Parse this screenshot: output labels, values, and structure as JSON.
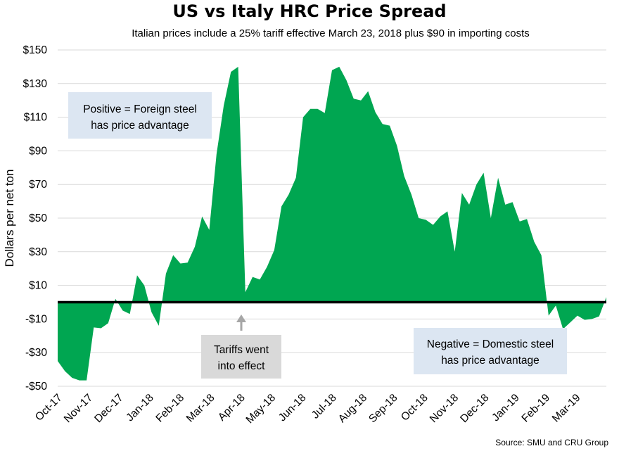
{
  "chart_data": {
    "type": "area",
    "title": "US vs Italy HRC Price Spread",
    "subtitle": "Italian prices include a 25% tariff effective March 23, 2018 plus $90 in importing costs",
    "xlabel": "",
    "ylabel": "Dollars per net ton",
    "ylim": [
      -50,
      150
    ],
    "yticks": [
      -50,
      -30,
      -10,
      10,
      30,
      50,
      70,
      90,
      110,
      130,
      150
    ],
    "ytick_labels": [
      "-$50",
      "-$30",
      "-$10",
      "$10",
      "$30",
      "$50",
      "$70",
      "$90",
      "$110",
      "$130",
      "$150"
    ],
    "xtick_labels": [
      "Oct-17",
      "Nov-17",
      "Dec-17",
      "Jan-18",
      "Feb-18",
      "Mar-18",
      "Apr-18",
      "May-18",
      "Jun-18",
      "Jul-18",
      "Aug-18",
      "Sep-18",
      "Oct-18",
      "Nov-18",
      "Dec-18",
      "Jan-19",
      "Feb-19",
      "Mar-19"
    ],
    "grid": true,
    "series": [
      {
        "name": "US vs Italy HRC Price Spread",
        "color": "#00A651",
        "values": [
          -35,
          -41,
          -45,
          -46.5,
          -46.5,
          -15,
          -15.5,
          -12.5,
          2,
          -5,
          -7,
          16,
          10,
          -6,
          -14,
          17,
          28,
          23,
          23.5,
          33,
          51,
          43,
          88,
          117,
          137,
          140,
          6,
          15,
          13.5,
          21,
          31,
          57,
          64,
          74,
          110,
          115,
          115,
          112.5,
          138,
          140,
          132,
          121,
          120,
          125.5,
          113,
          106,
          105,
          93,
          75,
          64,
          50,
          49,
          46,
          51,
          54,
          30,
          65,
          58,
          70,
          77,
          50,
          74,
          58,
          59.5,
          48,
          49.5,
          36,
          28,
          -8,
          -2,
          -16,
          -12,
          -8,
          -10.5,
          -10,
          -8.5,
          3
        ]
      }
    ],
    "annotations": [
      {
        "name": "positive-note",
        "lines": [
          "Positive = Foreign steel",
          "has price advantage"
        ]
      },
      {
        "name": "negative-note",
        "lines": [
          "Negative = Domestic steel",
          "has price advantage"
        ]
      },
      {
        "name": "tariff-note",
        "lines": [
          "Tariffs went",
          "into effect"
        ]
      }
    ],
    "source": "Source: SMU and CRU Group",
    "colors": {
      "area": "#00A651",
      "zero_line": "#000000",
      "grid": "#D9D9D9",
      "note_box": "#DCE6F2",
      "tariff_box": "#D9D9D9",
      "arrow": "#A6A6A6"
    }
  }
}
